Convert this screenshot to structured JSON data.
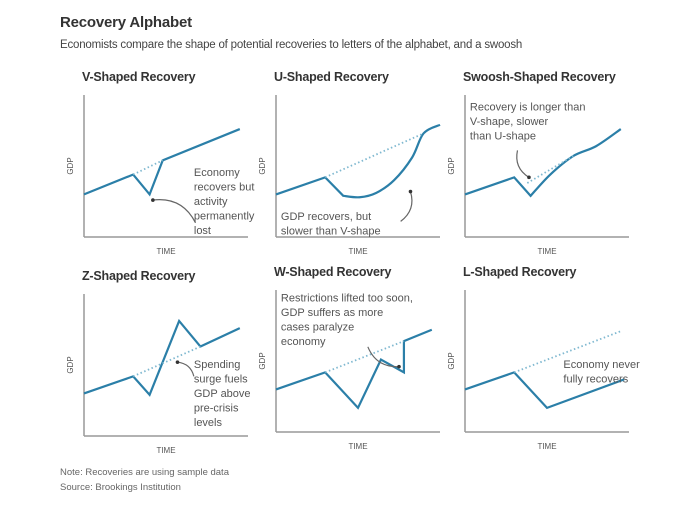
{
  "header": {
    "title": "Recovery Alphabet",
    "subtitle": "Economists compare the shape of potential recoveries to letters of the alphabet, and a swoosh"
  },
  "footer": {
    "note": "Note: Recoveries are using sample data",
    "source": "Source: Brookings Institution"
  },
  "colors": {
    "line": "#2b7fa8",
    "trend": "#7fb8d0",
    "axis": "#999999",
    "annotation_arrow": "#666666"
  },
  "chart_data": [
    {
      "type": "line",
      "title": "V-Shaped Recovery",
      "xlabel": "TIME",
      "ylabel": "GDP",
      "xlim": [
        0,
        100
      ],
      "ylim": [
        0,
        100
      ],
      "series": [
        {
          "name": "GDP",
          "style": "solid",
          "points": [
            [
              0,
              30
            ],
            [
              30,
              44
            ],
            [
              40,
              30
            ],
            [
              48,
              54
            ],
            [
              95,
              76
            ]
          ]
        },
        {
          "name": "Pre-crisis trend",
          "style": "dotted",
          "points": [
            [
              30,
              44
            ],
            [
              48,
              54
            ]
          ]
        }
      ],
      "annotation": {
        "lines": [
          "Economy",
          "recovers but",
          "activity",
          "permanently",
          "lost"
        ],
        "text_pos": [
          67,
          50
        ],
        "arrow": {
          "from": [
            68,
            10
          ],
          "to": [
            42,
            26
          ]
        }
      }
    },
    {
      "type": "line",
      "title": "U-Shaped Recovery",
      "xlabel": "TIME",
      "ylabel": "GDP",
      "xlim": [
        0,
        100
      ],
      "ylim": [
        0,
        100
      ],
      "series": [
        {
          "name": "GDP",
          "style": "solid",
          "curve": "u",
          "points": [
            [
              0,
              30
            ],
            [
              30,
              42
            ],
            [
              41,
              29
            ],
            [
              51,
              28
            ],
            [
              61,
              31
            ],
            [
              72,
              40
            ],
            [
              83,
              56
            ],
            [
              90,
              73
            ],
            [
              100,
              79
            ]
          ]
        },
        {
          "name": "Pre-crisis trend",
          "style": "dotted",
          "points": [
            [
              30,
              42
            ],
            [
              90,
              73
            ]
          ]
        }
      ],
      "annotation": {
        "lines": [
          "GDP recovers, but",
          "slower than V-shape"
        ],
        "text_pos": [
          3,
          19
        ],
        "arrow": {
          "from": [
            76,
            11
          ],
          "to": [
            82,
            32
          ]
        }
      }
    },
    {
      "type": "line",
      "title": "Swoosh-Shaped Recovery",
      "xlabel": "TIME",
      "ylabel": "GDP",
      "xlim": [
        0,
        100
      ],
      "ylim": [
        0,
        100
      ],
      "series": [
        {
          "name": "GDP",
          "style": "solid",
          "curve": "swoosh",
          "points": [
            [
              0,
              30
            ],
            [
              30,
              42
            ],
            [
              40,
              29
            ],
            [
              52,
              44
            ],
            [
              66,
              57
            ],
            [
              80,
              64
            ],
            [
              95,
              76
            ]
          ]
        },
        {
          "name": "Pre-crisis trend",
          "style": "dotted",
          "points": [
            [
              38,
              38
            ],
            [
              66,
              57
            ]
          ]
        }
      ],
      "annotation": {
        "lines": [
          "Recovery is longer than",
          "V-shape, slower",
          "than U-shape"
        ],
        "text_pos": [
          3,
          96
        ],
        "arrow": {
          "from": [
            32,
            61
          ],
          "to": [
            39,
            42
          ]
        }
      }
    },
    {
      "type": "line",
      "title": "Z-Shaped Recovery",
      "xlabel": "TIME",
      "ylabel": "GDP",
      "xlim": [
        0,
        100
      ],
      "ylim": [
        0,
        100
      ],
      "series": [
        {
          "name": "GDP",
          "style": "solid",
          "points": [
            [
              0,
              30
            ],
            [
              30,
              42
            ],
            [
              40,
              29
            ],
            [
              58,
              81
            ],
            [
              71,
              63
            ],
            [
              95,
              76
            ]
          ]
        },
        {
          "name": "Pre-crisis trend",
          "style": "dotted",
          "points": [
            [
              30,
              42
            ],
            [
              71,
              63
            ]
          ]
        }
      ],
      "annotation": {
        "lines": [
          "Spending",
          "surge fuels",
          "GDP above",
          "pre-crisis",
          "levels"
        ],
        "text_pos": [
          67,
          55
        ],
        "arrow": {
          "from": [
            67,
            42
          ],
          "to": [
            57,
            52
          ]
        }
      }
    },
    {
      "type": "line",
      "title": "W-Shaped Recovery",
      "xlabel": "TIME",
      "ylabel": "GDP",
      "xlim": [
        0,
        100
      ],
      "ylim": [
        0,
        100
      ],
      "series": [
        {
          "name": "GDP",
          "style": "solid",
          "points": [
            [
              0,
              30
            ],
            [
              30,
              42
            ],
            [
              50,
              17
            ],
            [
              64,
              51
            ],
            [
              78,
              42
            ],
            [
              78,
              64
            ],
            [
              95,
              72
            ]
          ]
        },
        {
          "name": "Pre-crisis trend",
          "style": "dotted",
          "points": [
            [
              30,
              42
            ],
            [
              78,
              64
            ]
          ]
        }
      ],
      "annotation": {
        "lines": [
          "Restrictions lifted too soon,",
          "GDP suffers as more",
          "cases paralyze",
          "economy"
        ],
        "text_pos": [
          3,
          99
        ],
        "arrow": {
          "from": [
            56,
            60
          ],
          "to": [
            75,
            46
          ]
        }
      }
    },
    {
      "type": "line",
      "title": "L-Shaped Recovery",
      "xlabel": "TIME",
      "ylabel": "GDP",
      "xlim": [
        0,
        100
      ],
      "ylim": [
        0,
        100
      ],
      "series": [
        {
          "name": "GDP",
          "style": "solid",
          "points": [
            [
              0,
              30
            ],
            [
              30,
              42
            ],
            [
              50,
              17
            ],
            [
              97,
              37
            ]
          ]
        },
        {
          "name": "Pre-crisis trend",
          "style": "dotted",
          "points": [
            [
              30,
              42
            ],
            [
              95,
              71
            ]
          ]
        }
      ],
      "annotation": {
        "lines": [
          "Economy never",
          "fully recovers"
        ],
        "text_pos": [
          60,
          52
        ],
        "arrow": null
      }
    }
  ]
}
